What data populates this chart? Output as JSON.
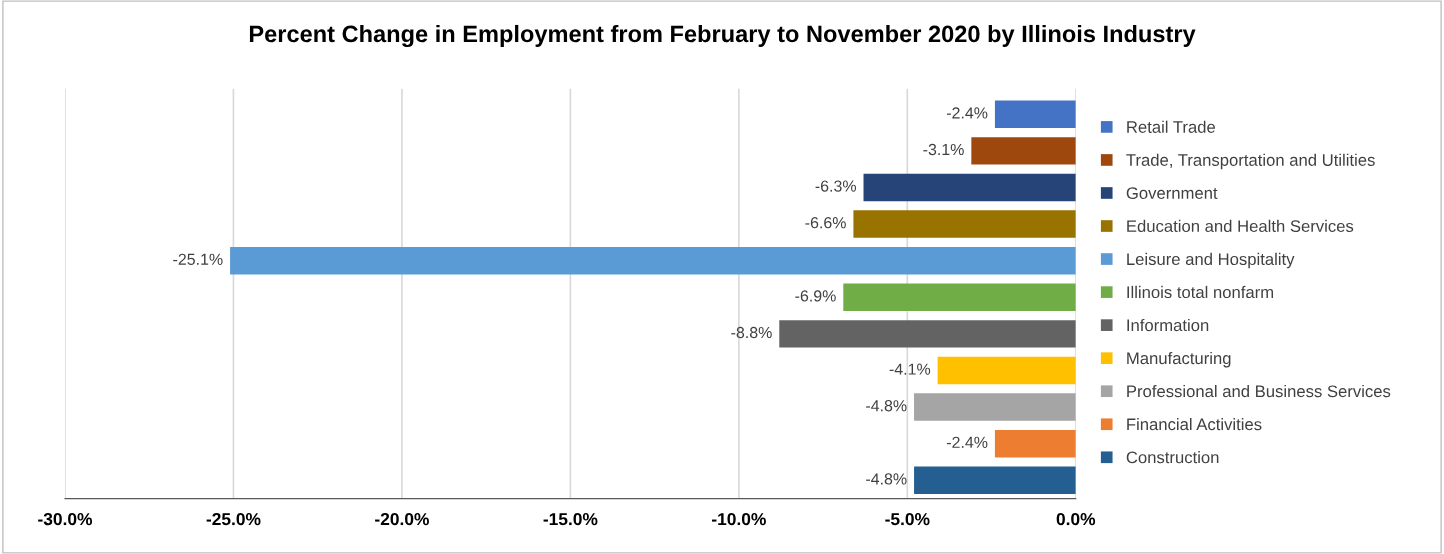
{
  "chart_data": {
    "type": "bar",
    "orientation": "horizontal",
    "stacked": true,
    "title": "Percent Change in Employment from February to November 2020 by Illinois Industry",
    "categories": [
      null,
      null,
      null,
      null,
      null,
      null,
      null,
      null,
      null,
      null,
      null
    ],
    "series": [
      {
        "name": "Retail Trade",
        "color": "#4472c4",
        "values": [
          -2.4,
          null,
          null,
          null,
          null,
          null,
          null,
          null,
          null,
          null,
          null
        ],
        "value_labels": [
          "-2.4%",
          null,
          null,
          null,
          null,
          null,
          null,
          null,
          null,
          null,
          null
        ]
      },
      {
        "name": "Trade, Transportation and Utilities",
        "color": "#9e480e",
        "values": [
          null,
          -3.1,
          null,
          null,
          null,
          null,
          null,
          null,
          null,
          null,
          null
        ],
        "value_labels": [
          null,
          "-3.1%",
          null,
          null,
          null,
          null,
          null,
          null,
          null,
          null,
          null
        ]
      },
      {
        "name": "Government",
        "color": "#264478",
        "values": [
          null,
          null,
          -6.3,
          null,
          null,
          null,
          null,
          null,
          null,
          null,
          null
        ],
        "value_labels": [
          null,
          null,
          "-6.3%",
          null,
          null,
          null,
          null,
          null,
          null,
          null,
          null
        ]
      },
      {
        "name": "Education and Health Services",
        "color": "#997300",
        "values": [
          null,
          null,
          null,
          -6.6,
          null,
          null,
          null,
          null,
          null,
          null,
          null
        ],
        "value_labels": [
          null,
          null,
          null,
          "-6.6%",
          null,
          null,
          null,
          null,
          null,
          null,
          null
        ]
      },
      {
        "name": "Leisure and Hospitality",
        "color": "#5b9bd5",
        "values": [
          null,
          null,
          null,
          null,
          -25.1,
          null,
          null,
          null,
          null,
          null,
          null
        ],
        "value_labels": [
          null,
          null,
          null,
          null,
          "-25.1%",
          null,
          null,
          null,
          null,
          null,
          null
        ]
      },
      {
        "name": "Illinois total nonfarm",
        "color": "#70ad47",
        "values": [
          null,
          null,
          null,
          null,
          null,
          -6.9,
          null,
          null,
          null,
          null,
          null
        ],
        "value_labels": [
          null,
          null,
          null,
          null,
          null,
          "-6.9%",
          null,
          null,
          null,
          null,
          null
        ]
      },
      {
        "name": "Information",
        "color": "#636363",
        "values": [
          null,
          null,
          null,
          null,
          null,
          null,
          -8.8,
          null,
          null,
          null,
          null
        ],
        "value_labels": [
          null,
          null,
          null,
          null,
          null,
          null,
          "-8.8%",
          null,
          null,
          null,
          null
        ]
      },
      {
        "name": "Manufacturing",
        "color": "#ffc000",
        "values": [
          null,
          null,
          null,
          null,
          null,
          null,
          null,
          -4.1,
          null,
          null,
          null
        ],
        "value_labels": [
          null,
          null,
          null,
          null,
          null,
          null,
          null,
          "-4.1%",
          null,
          null,
          null
        ]
      },
      {
        "name": "Professional and Business Services",
        "color": "#a5a5a5",
        "values": [
          null,
          null,
          null,
          null,
          null,
          null,
          null,
          null,
          -4.8,
          null,
          null
        ],
        "value_labels": [
          null,
          null,
          null,
          null,
          null,
          null,
          null,
          null,
          "-4.8%",
          null,
          null
        ]
      },
      {
        "name": "Financial Activities",
        "color": "#ed7d31",
        "values": [
          null,
          null,
          null,
          null,
          null,
          null,
          null,
          null,
          null,
          -2.4,
          null
        ],
        "value_labels": [
          null,
          null,
          null,
          null,
          null,
          null,
          null,
          null,
          null,
          "-2.4%",
          null
        ]
      },
      {
        "name": "Construction",
        "color": "#255e91",
        "values": [
          null,
          null,
          null,
          null,
          null,
          null,
          null,
          null,
          null,
          null,
          -4.8
        ],
        "value_labels": [
          null,
          null,
          null,
          null,
          null,
          null,
          null,
          null,
          null,
          null,
          "-4.8%"
        ]
      }
    ],
    "xlim": [
      -30,
      0
    ],
    "xticks": [
      {
        "value": -30,
        "label": "-30.0%"
      },
      {
        "value": -25,
        "label": "-25.0%"
      },
      {
        "value": -20,
        "label": "-20.0%"
      },
      {
        "value": -15,
        "label": "-15.0%"
      },
      {
        "value": -10,
        "label": "-10.0%"
      },
      {
        "value": -5,
        "label": "-5.0%"
      },
      {
        "value": 0,
        "label": "0.0%"
      }
    ],
    "grid": "x",
    "legend": "right",
    "tick_labels": "x"
  }
}
